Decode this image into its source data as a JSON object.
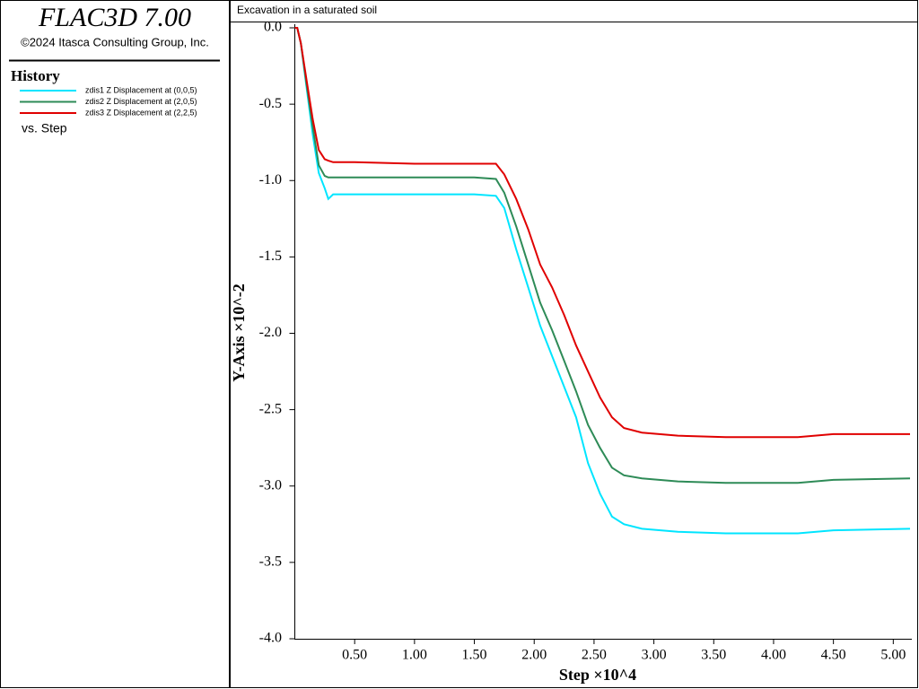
{
  "app": {
    "title": "FLAC3D 7.00",
    "copyright": "©2024 Itasca Consulting Group, Inc."
  },
  "legend": {
    "heading": "History",
    "x_label": "vs. Step"
  },
  "chart_data": {
    "type": "line",
    "title": "Excavation in a saturated soil",
    "x_label": "Step ×10^4",
    "y_label": "Y-Axis ×10^-2",
    "x": [
      0,
      0.02,
      0.05,
      0.1,
      0.15,
      0.2,
      0.25,
      0.28,
      0.32,
      0.5,
      1.0,
      1.5,
      1.68,
      1.75,
      1.85,
      1.95,
      2.05,
      2.15,
      2.25,
      2.35,
      2.45,
      2.55,
      2.65,
      2.75,
      2.9,
      3.2,
      3.6,
      4.2,
      4.5,
      5.14
    ],
    "series": [
      {
        "name": "zdis1 Z Displacement at (0,0,5)",
        "color": "#00e5ff",
        "values": [
          0,
          0,
          -0.1,
          -0.4,
          -0.7,
          -0.95,
          -1.05,
          -1.12,
          -1.09,
          -1.09,
          -1.09,
          -1.09,
          -1.1,
          -1.18,
          -1.45,
          -1.7,
          -1.95,
          -2.15,
          -2.35,
          -2.55,
          -2.85,
          -3.05,
          -3.2,
          -3.25,
          -3.28,
          -3.3,
          -3.31,
          -3.31,
          -3.29,
          -3.28
        ]
      },
      {
        "name": "zdis2 Z Displacement at (2,0,5)",
        "color": "#2e8b57",
        "values": [
          0,
          0,
          -0.1,
          -0.38,
          -0.65,
          -0.9,
          -0.97,
          -0.98,
          -0.98,
          -0.98,
          -0.98,
          -0.98,
          -0.99,
          -1.08,
          -1.3,
          -1.55,
          -1.8,
          -1.98,
          -2.18,
          -2.38,
          -2.6,
          -2.75,
          -2.88,
          -2.93,
          -2.95,
          -2.97,
          -2.98,
          -2.98,
          -2.96,
          -2.95
        ]
      },
      {
        "name": "zdis3 Z Displacement at (2,2,5)",
        "color": "#e00000",
        "values": [
          0,
          0,
          -0.1,
          -0.35,
          -0.6,
          -0.8,
          -0.86,
          -0.87,
          -0.88,
          -0.88,
          -0.89,
          -0.89,
          -0.89,
          -0.96,
          -1.12,
          -1.32,
          -1.55,
          -1.7,
          -1.88,
          -2.08,
          -2.25,
          -2.42,
          -2.55,
          -2.62,
          -2.65,
          -2.67,
          -2.68,
          -2.68,
          -2.66,
          -2.66
        ]
      }
    ],
    "xlim": [
      0,
      5.14
    ],
    "ylim": [
      -4,
      0
    ],
    "xticks": [
      {
        "value": 0.5,
        "label": "0.50"
      },
      {
        "value": 1,
        "label": "1.00"
      },
      {
        "value": 1.5,
        "label": "1.50"
      },
      {
        "value": 2,
        "label": "2.00"
      },
      {
        "value": 2.5,
        "label": "2.50"
      },
      {
        "value": 3,
        "label": "3.00"
      },
      {
        "value": 3.5,
        "label": "3.50"
      },
      {
        "value": 4,
        "label": "4.00"
      },
      {
        "value": 4.5,
        "label": "4.50"
      },
      {
        "value": 5,
        "label": "5.00"
      }
    ],
    "yticks": [
      {
        "value": 0,
        "label": "0.0"
      },
      -0.5,
      {
        "value": -1,
        "label": "-1.0"
      },
      -1.5,
      {
        "value": -2,
        "label": "-2.0"
      },
      -2.5,
      {
        "value": -3,
        "label": "-3.0"
      },
      -3.5,
      {
        "value": -4,
        "label": "-4.0"
      }
    ]
  }
}
